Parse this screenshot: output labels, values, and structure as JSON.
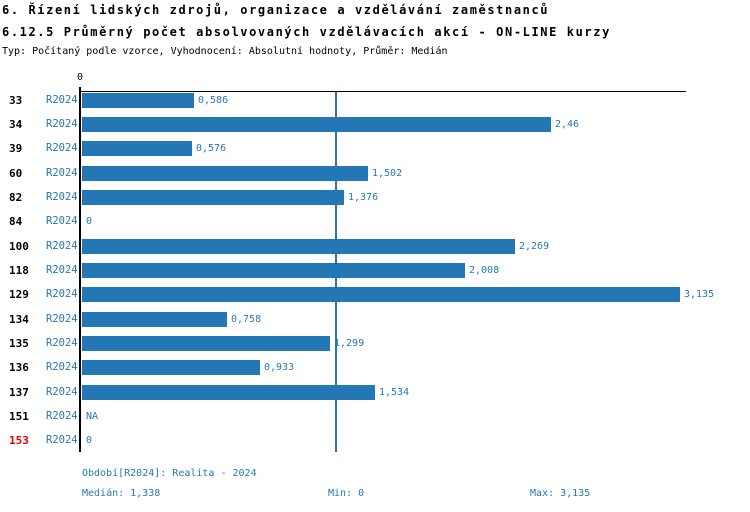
{
  "header": {
    "title_line1": "6. Řízení lidských zdrojů, organizace a vzdělávání zaměstnanců",
    "title_line2": "6.12.5 Průměrný počet absolvovaných vzdělávacích akcí - ON-LINE kurzy",
    "meta_line": "Typ: Počítaný podle vzorce, Vyhodnocení: Absolutní hodnoty, Průměr: Medián"
  },
  "chart_data": {
    "type": "bar",
    "orientation": "horizontal",
    "value_axis": {
      "tick_labels": [
        "0"
      ],
      "min": 0,
      "max": 3.17,
      "grid": false
    },
    "median_line_value": 1.338,
    "rows": [
      {
        "id": "33",
        "period": "R2024",
        "value": 0.586,
        "value_label": "0,586",
        "id_color": "black"
      },
      {
        "id": "34",
        "period": "R2024",
        "value": 2.46,
        "value_label": "2,46",
        "id_color": "black"
      },
      {
        "id": "39",
        "period": "R2024",
        "value": 0.576,
        "value_label": "0,576",
        "id_color": "black"
      },
      {
        "id": "60",
        "period": "R2024",
        "value": 1.502,
        "value_label": "1,502",
        "id_color": "black"
      },
      {
        "id": "82",
        "period": "R2024",
        "value": 1.376,
        "value_label": "1,376",
        "id_color": "black"
      },
      {
        "id": "84",
        "period": "R2024",
        "value": 0,
        "value_label": "0",
        "id_color": "black"
      },
      {
        "id": "100",
        "period": "R2024",
        "value": 2.269,
        "value_label": "2,269",
        "id_color": "black"
      },
      {
        "id": "118",
        "period": "R2024",
        "value": 2.008,
        "value_label": "2,008",
        "id_color": "black"
      },
      {
        "id": "129",
        "period": "R2024",
        "value": 3.135,
        "value_label": "3,135",
        "id_color": "black"
      },
      {
        "id": "134",
        "period": "R2024",
        "value": 0.758,
        "value_label": "0,758",
        "id_color": "black"
      },
      {
        "id": "135",
        "period": "R2024",
        "value": 1.299,
        "value_label": "1,299",
        "id_color": "black"
      },
      {
        "id": "136",
        "period": "R2024",
        "value": 0.933,
        "value_label": "0,933",
        "id_color": "black"
      },
      {
        "id": "137",
        "period": "R2024",
        "value": 1.534,
        "value_label": "1,534",
        "id_color": "black"
      },
      {
        "id": "151",
        "period": "R2024",
        "value": null,
        "value_label": "NA",
        "id_color": "black"
      },
      {
        "id": "153",
        "period": "R2024",
        "value": 0,
        "value_label": "0",
        "id_color": "red"
      }
    ]
  },
  "footer": {
    "period_label": "Období[R2024]: Realita - 2024",
    "median_label": "Medián: 1,338",
    "min_label": "Min: 0",
    "max_label": "Max: 3,135"
  },
  "colors": {
    "bar": "#2277b4",
    "median_line": "#2277b4",
    "text_blue": "#2679b5",
    "highlight_red": "#dd0000",
    "axis": "#000000"
  }
}
